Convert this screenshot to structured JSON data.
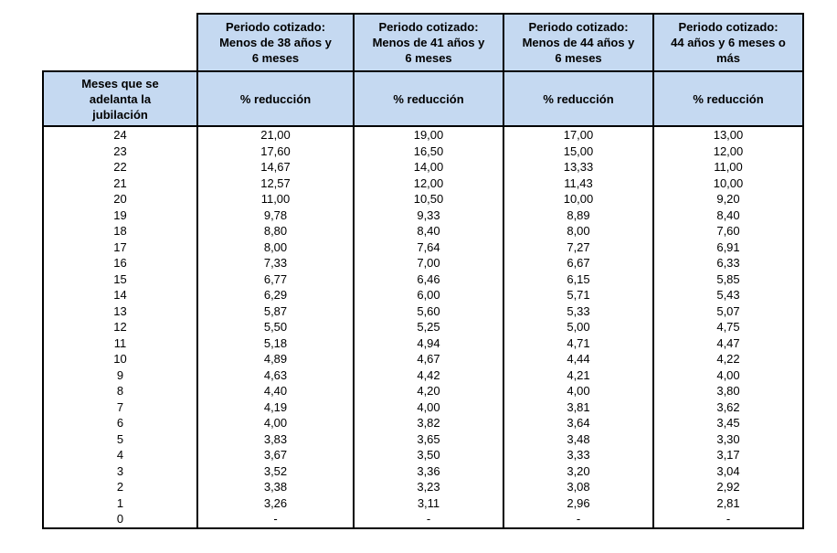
{
  "table": {
    "months_header": "Meses que se\nadelanta la\njubilación",
    "period_headers": [
      "Periodo cotizado:\nMenos de 38 años y\n6 meses",
      "Periodo cotizado:\nMenos de 41 años y\n6 meses",
      "Periodo cotizado:\nMenos de 44 años y\n6 meses",
      "Periodo cotizado:\n44 años y 6 meses o\nmás"
    ],
    "subheader_label": "% reducción",
    "header_bg_color": "#c5d9f1",
    "border_color": "#000000",
    "rows": [
      {
        "months": "24",
        "values": [
          "21,00",
          "19,00",
          "17,00",
          "13,00"
        ]
      },
      {
        "months": "23",
        "values": [
          "17,60",
          "16,50",
          "15,00",
          "12,00"
        ]
      },
      {
        "months": "22",
        "values": [
          "14,67",
          "14,00",
          "13,33",
          "11,00"
        ]
      },
      {
        "months": "21",
        "values": [
          "12,57",
          "12,00",
          "11,43",
          "10,00"
        ]
      },
      {
        "months": "20",
        "values": [
          "11,00",
          "10,50",
          "10,00",
          "9,20"
        ]
      },
      {
        "months": "19",
        "values": [
          "9,78",
          "9,33",
          "8,89",
          "8,40"
        ]
      },
      {
        "months": "18",
        "values": [
          "8,80",
          "8,40",
          "8,00",
          "7,60"
        ]
      },
      {
        "months": "17",
        "values": [
          "8,00",
          "7,64",
          "7,27",
          "6,91"
        ]
      },
      {
        "months": "16",
        "values": [
          "7,33",
          "7,00",
          "6,67",
          "6,33"
        ]
      },
      {
        "months": "15",
        "values": [
          "6,77",
          "6,46",
          "6,15",
          "5,85"
        ]
      },
      {
        "months": "14",
        "values": [
          "6,29",
          "6,00",
          "5,71",
          "5,43"
        ]
      },
      {
        "months": "13",
        "values": [
          "5,87",
          "5,60",
          "5,33",
          "5,07"
        ]
      },
      {
        "months": "12",
        "values": [
          "5,50",
          "5,25",
          "5,00",
          "4,75"
        ]
      },
      {
        "months": "11",
        "values": [
          "5,18",
          "4,94",
          "4,71",
          "4,47"
        ]
      },
      {
        "months": "10",
        "values": [
          "4,89",
          "4,67",
          "4,44",
          "4,22"
        ]
      },
      {
        "months": "9",
        "values": [
          "4,63",
          "4,42",
          "4,21",
          "4,00"
        ]
      },
      {
        "months": "8",
        "values": [
          "4,40",
          "4,20",
          "4,00",
          "3,80"
        ]
      },
      {
        "months": "7",
        "values": [
          "4,19",
          "4,00",
          "3,81",
          "3,62"
        ]
      },
      {
        "months": "6",
        "values": [
          "4,00",
          "3,82",
          "3,64",
          "3,45"
        ]
      },
      {
        "months": "5",
        "values": [
          "3,83",
          "3,65",
          "3,48",
          "3,30"
        ]
      },
      {
        "months": "4",
        "values": [
          "3,67",
          "3,50",
          "3,33",
          "3,17"
        ]
      },
      {
        "months": "3",
        "values": [
          "3,52",
          "3,36",
          "3,20",
          "3,04"
        ]
      },
      {
        "months": "2",
        "values": [
          "3,38",
          "3,23",
          "3,08",
          "2,92"
        ]
      },
      {
        "months": "1",
        "values": [
          "3,26",
          "3,11",
          "2,96",
          "2,81"
        ]
      },
      {
        "months": "0",
        "values": [
          "-",
          "-",
          "-",
          "-"
        ]
      }
    ]
  }
}
